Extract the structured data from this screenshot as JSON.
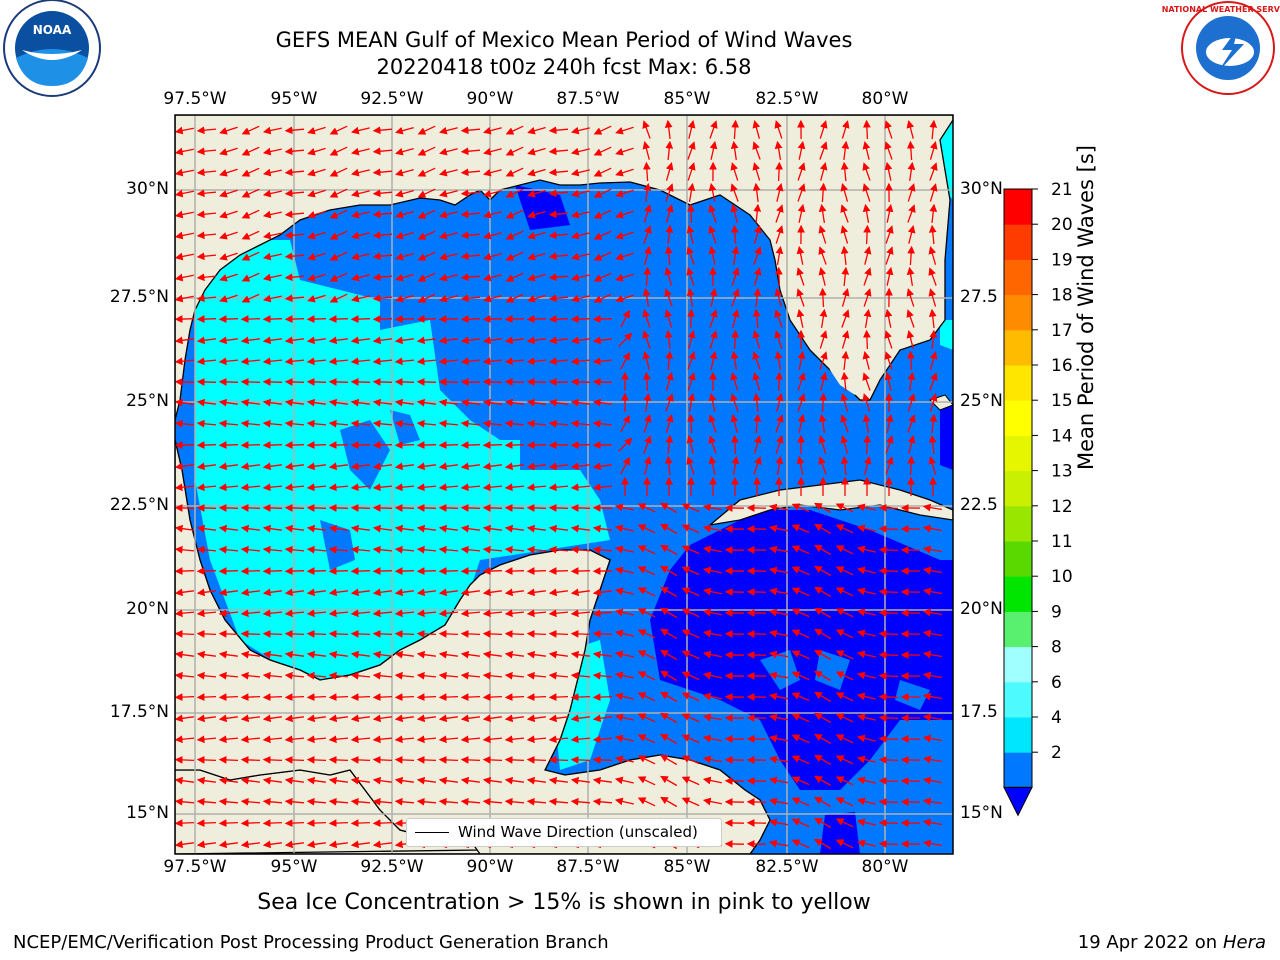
{
  "title_line1": "GEFS MEAN Gulf of Mexico Mean Period of Wind Waves",
  "title_line2": "20220418 t00z 240h fcst   Max: 6.58",
  "lon_ticks": [
    "97.5°W",
    "95°W",
    "92.5°W",
    "90°W",
    "87.5°W",
    "85°W",
    "82.5°W",
    "80°W"
  ],
  "lat_ticks": [
    "30°N",
    "27.5°N",
    "25°N",
    "22.5°N",
    "20°N",
    "17.5°N",
    "15°N"
  ],
  "lat_ticks_right": [
    "30°N",
    "27.5",
    "25°N",
    "22.5",
    "20°N",
    "17.5",
    "15°N"
  ],
  "colorbar": {
    "label": "Mean Period of Wind Waves [s]",
    "levels": [
      "21",
      "20",
      "19",
      "18",
      "17",
      "16",
      "15",
      "14",
      "13",
      "12",
      "11",
      "10",
      "9",
      "8",
      "6",
      "4",
      "2"
    ],
    "colors_bottom_to_top": [
      "#0078ff",
      "#00e6ff",
      "#4dfbff",
      "#a0ffff",
      "#59f070",
      "#00e600",
      "#59d900",
      "#99e600",
      "#c8f000",
      "#e6f500",
      "#ffff00",
      "#ffe600",
      "#ffbb00",
      "#ff8c00",
      "#ff6600",
      "#ff3c00",
      "#ff0000"
    ],
    "below_color": "#0000ff"
  },
  "legend": {
    "text": "Wind Wave Direction (unscaled)"
  },
  "footnote": "Sea Ice Concentration > 15% is shown in pink to yellow",
  "footer": {
    "credit": "NCEP/EMC/Verification Post Processing Product Generation Branch",
    "date": "19 Apr 2022 on ",
    "host": "Hera"
  },
  "logos": {
    "noaa_text": "NOAA",
    "nws_text": "NATIONAL WEATHER SERVICE"
  },
  "colors": {
    "land": "#efeedc",
    "grid": "#b0b0b0",
    "arrow": "#ff0000",
    "sea_dark": "#0000ff",
    "sea_mid": "#0078ff",
    "sea_cyan": "#00ffff"
  }
}
